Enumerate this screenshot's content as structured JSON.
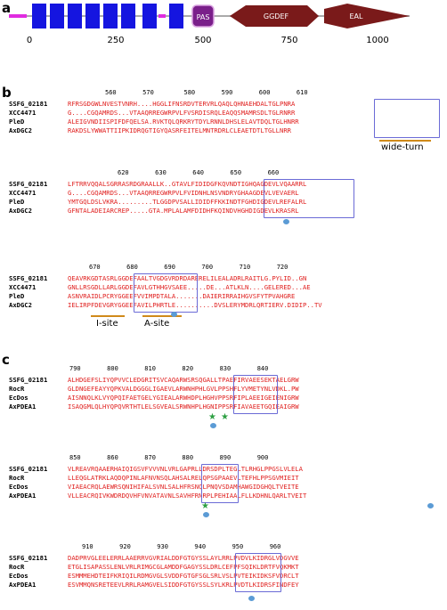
{
  "panels": {
    "a": "a",
    "b": "b",
    "c": "c"
  },
  "domain_map": {
    "ticks": [
      "0",
      "250",
      "500",
      "750",
      "1000"
    ],
    "labels": {
      "pas": "PAS",
      "ggdef": "GGDEF",
      "eal": "EAL"
    },
    "colors": {
      "tm": "#1515e0",
      "small": "#e02be0",
      "pas": "#7a1f8a",
      "ggdef": "#7a1a1a",
      "eal": "#7a1a1a",
      "line": "#aaaaaa"
    }
  },
  "panel_b": {
    "blocks": [
      {
        "ruler": "560       570        580       590       600       610",
        "names": [
          "SSFG_02181",
          "XCC4471",
          "PleD",
          "AxDGC2"
        ],
        "seqs": [
          "RFRSGDGWLNVESTVNRH....HGGLIFNSRDVTERVRLQAQLQHNAEHDALTGLPNRA",
          "G....CGQAMRDS...VTAAQRREGWRPVLFVSRDISRQLEAQQSMAMRSDLTGLRNRR",
          "ALEIGVNDIISPIFDFQELSA.RVKTQLQRKRYTDYLRNNLDHSLELAVTDQLTGLHNRR",
          "RAKDSLYWWATTIIPKIDRQGTIGYQASRFEITELMNTRDRLCLEAETDTLTGLLNRR"
        ],
        "sites": [
          "wide-turn"
        ]
      },
      {
        "ruler": "620       630       640       650       660",
        "names": [
          "SSFG_02181",
          "XCC4471",
          "PleD",
          "AxDGC2"
        ],
        "seqs": [
          "LFTRRVQQALSGRRASRDGRAALLK..GTAVLFIDIDGFKQVNDTIGHQAGDEVLVQAARRL",
          "G....CGQAMRDS...VTAAQRREGWRPVLFVIDNHLNSVNDRYGHAAGDEVLVEVAERL",
          "YMTGQLDSLVKRA.........TLGGDPVSALLIDIDFFKKINDTFGHDIGDEVLREFALRL",
          "GFNTALADEIARCREP.....GTA.MPLALAMFDIDHFKQINDVHGHDIGDEVLKRASRL"
        ],
        "sites": []
      },
      {
        "ruler": "670       680       690       700       710       720",
        "names": [
          "SSFG_02181",
          "XCC4471",
          "PleD",
          "AxDGC2"
        ],
        "seqs": [
          "QEAVRKGDTASRLGGDEFAALTVGDGVRDRDARERELILEALADRLRAITLG.PYLID..GN",
          "GNLLRSGDLLARLGGDEFAVLGTHHGVSAEE.....DE...ATLKLN....GELERED...AE",
          "ASNVRAIDLPCRYGGEEFVVIMPDTALA.......DAIERIRRAIHGVSFYTPVAHGRE",
          "IELIRPFDEVGRYGGEEFAVILPHRTLE..........DVSLERYMDRLQRTIERV.DIDIP..TV"
        ],
        "sites": [
          "I-site",
          "A-site"
        ]
      }
    ]
  },
  "panel_c": {
    "blocks": [
      {
        "ruler": "790       800       810       820       830       840",
        "names": [
          "SSFG_02181",
          "RocR",
          "EcDos",
          "AxPDEA1"
        ],
        "seqs": [
          "ALHDGEFSLIYQPVVCLEDGRITSVCAQARWSRSQGALLTPAEFIRVAEESEKTAELGRW",
          "GLDNGEFEAYYQPKVALDGGGLIGAEVLARWNHPHLGVLPPSHFLYVMETYNLVDKL.PW",
          "AISNNQLKLVYQPQIFAETGELYGIEALARWHDPLHGHVPPSRFIPLAEEIGEIENIGRW",
          "ISAQGMLQLHYQPQVRTHTLELSGVEALSRWNHPLHGNIPPSRFIAVAEETGQIEAIGRW"
        ],
        "sites": []
      },
      {
        "ruler": "850       860       870       880       890       900",
        "names": [
          "SSFG_02181",
          "RocR",
          "EcDos",
          "AxPDEA1"
        ],
        "seqs": [
          "VLREAVRQAAERHAIQIGSVFVVVNLVRLGAPRLLDRSDPLTEGLTLRHGLPPGSLVLELA",
          "LLEQGLATRKLAQDQPINLAFNVNSQLAHSALRELQPSGPAAEVLTEFHLPPSGVMIEIT",
          "VIAEACRQLAEWRSQNIHIFALSVNLSALHFRSNQLPNQVSDAMHAWGIDGHQLTVEITE",
          "VLLEACRQIVKWDRDQVHFVNVATAVNLSAVHFRNRPLPEHIAALFLLKDHNLQARLTVEIT"
        ],
        "sites": []
      },
      {
        "ruler": "910       920       930       940       950       960",
        "names": [
          "SSFG_02181",
          "RocR",
          "EcDos",
          "AxPDEA1"
        ],
        "seqs": [
          "DADPRVGLEELERRLAAERRVGVRIALDDFGTGYSSLAYLRRLPVDVLKIDRGLVDGVVE",
          "ETGLISAPASSLENLVRLRIMGCGLAMDDFGAGYSSLDRLCEFPFSQIKLDRTFVQKMKT",
          "ESMMMEHDTEIFKRIQILRDMGVGLSVDDFGTGFSGLSRLVSLPVTEIKIDKSFVDRCLT",
          "ESVMMQNSRETEEVLRRLRAMGVELSIDDFGTGYSSLSYLKRLPVDTLKIDRSFINDFEY"
        ],
        "sites": []
      }
    ]
  }
}
